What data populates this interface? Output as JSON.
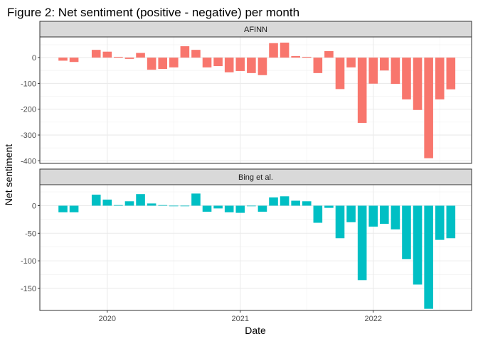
{
  "chart_data": {
    "type": "bar",
    "title": "Figure 2: Net sentiment (positive - negative) per month",
    "xlabel": "Date",
    "ylabel": "Net sentiment",
    "x_ticks": [
      "2020",
      "2021",
      "2022"
    ],
    "months": [
      "2019-09",
      "2019-10",
      "2019-11",
      "2019-12",
      "2020-01",
      "2020-02",
      "2020-03",
      "2020-04",
      "2020-05",
      "2020-06",
      "2020-07",
      "2020-08",
      "2020-09",
      "2020-10",
      "2020-11",
      "2020-12",
      "2021-01",
      "2021-02",
      "2021-03",
      "2021-04",
      "2021-05",
      "2021-06",
      "2021-07",
      "2021-08",
      "2021-09",
      "2021-10",
      "2021-11",
      "2021-12",
      "2022-01",
      "2022-02",
      "2022-03",
      "2022-04",
      "2022-05",
      "2022-06",
      "2022-07",
      "2022-08"
    ],
    "grid": true,
    "facets": [
      {
        "name": "AFINN",
        "color": "#F8766D",
        "ylim": [
          -410,
          80
        ],
        "y_ticks": [
          0,
          -100,
          -200,
          -300,
          -400
        ],
        "values": [
          -12,
          -17,
          null,
          30,
          23,
          3,
          -5,
          18,
          -47,
          -44,
          -38,
          44,
          30,
          -38,
          -33,
          -57,
          -52,
          -60,
          -68,
          56,
          58,
          6,
          3,
          -60,
          25,
          -122,
          -38,
          -253,
          -101,
          -50,
          -102,
          -162,
          -203,
          -390,
          -162,
          -123
        ]
      },
      {
        "name": "Bing et al.",
        "color": "#00BFC4",
        "ylim": [
          -190,
          38
        ],
        "y_ticks": [
          0,
          -50,
          -100,
          -150
        ],
        "values": [
          -12,
          -12,
          null,
          20,
          11,
          1,
          8,
          21,
          4,
          1,
          -1,
          -1,
          22,
          -11,
          -5,
          -12,
          -13,
          -1,
          -11,
          15,
          17,
          9,
          8,
          -31,
          -4,
          -59,
          -30,
          -135,
          -38,
          -33,
          -43,
          -97,
          -143,
          -187,
          -62,
          -59
        ]
      }
    ]
  }
}
